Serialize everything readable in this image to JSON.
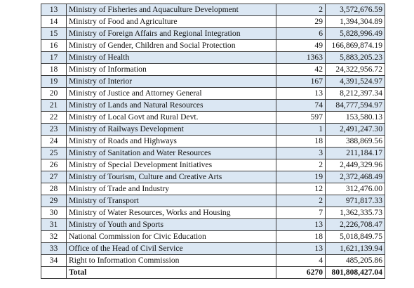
{
  "table": {
    "rows": [
      {
        "no": "13",
        "name": "Ministry of Fisheries and Aquaculture Development",
        "count": "2",
        "amount": "3,572,676.59"
      },
      {
        "no": "14",
        "name": "Ministry of Food and Agriculture",
        "count": "29",
        "amount": "1,394,304.89"
      },
      {
        "no": "15",
        "name": "Ministry of Foreign Affairs and Regional  Integration",
        "count": "6",
        "amount": "5,828,996.49"
      },
      {
        "no": "16",
        "name": "Ministry of Gender, Children and Social Protection",
        "count": "49",
        "amount": "166,869,874.19"
      },
      {
        "no": "17",
        "name": "Ministry of Health",
        "count": "1363",
        "amount": "5,883,205.23"
      },
      {
        "no": "18",
        "name": "Ministry of Information",
        "count": "42",
        "amount": "24,322,956.72"
      },
      {
        "no": "19",
        "name": "Ministry of Interior",
        "count": "167",
        "amount": "4,391,524.97"
      },
      {
        "no": "20",
        "name": "Ministry of Justice and Attorney General",
        "count": "13",
        "amount": "8,212,397.34"
      },
      {
        "no": "21",
        "name": "Ministry of Lands and Natural Resources",
        "count": "74",
        "amount": "84,777,594.97"
      },
      {
        "no": "22",
        "name": "Ministry of Local Govt and Rural Devt.",
        "count": "597",
        "amount": "153,580.13"
      },
      {
        "no": "23",
        "name": "Ministry of Railways Development",
        "count": "1",
        "amount": "2,491,247.30"
      },
      {
        "no": "24",
        "name": "Ministry of Roads and Highways",
        "count": "18",
        "amount": "388,869.56"
      },
      {
        "no": "25",
        "name": "Ministry of Sanitation and Water Resources",
        "count": "3",
        "amount": "211,184.17"
      },
      {
        "no": "26",
        "name": "Ministry of Special Development Initiatives",
        "count": "2",
        "amount": "2,449,329.96"
      },
      {
        "no": "27",
        "name": "Ministry of Tourism, Culture and Creative Arts",
        "count": "19",
        "amount": "2,372,468.49"
      },
      {
        "no": "28",
        "name": "Ministry of Trade and Industry",
        "count": "12",
        "amount": "312,476.00"
      },
      {
        "no": "29",
        "name": "Ministry of Transport",
        "count": "2",
        "amount": "971,817.33"
      },
      {
        "no": "30",
        "name": "Ministry of Water Resources, Works and Housing",
        "count": "7",
        "amount": "1,362,335.73"
      },
      {
        "no": "31",
        "name": "Ministry of Youth and Sports",
        "count": "13",
        "amount": "2,226,708.47"
      },
      {
        "no": "32",
        "name": "National Commission for Civic Education",
        "count": "18",
        "amount": "5,018,849.75"
      },
      {
        "no": "33",
        "name": "Office of the Head of Civil Service",
        "count": "13",
        "amount": "1,621,139.94"
      },
      {
        "no": "34",
        "name": "Right to Information Commission",
        "count": "4",
        "amount": "485,205.86"
      }
    ],
    "total": {
      "label": "Total",
      "count": "6270",
      "amount": "801,808,427.04"
    }
  }
}
